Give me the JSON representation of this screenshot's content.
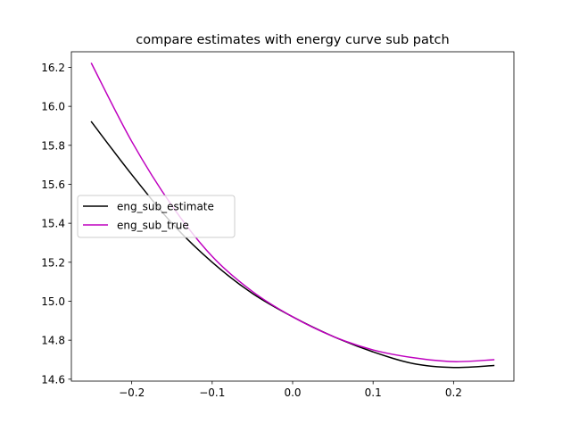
{
  "chart_data": {
    "type": "line",
    "title": "compare estimates with energy curve sub patch",
    "xlabel": "",
    "ylabel": "",
    "xlim": [
      -0.275,
      0.275
    ],
    "ylim": [
      14.59,
      16.28
    ],
    "xticks": [
      -0.2,
      -0.1,
      0.0,
      0.1,
      0.2
    ],
    "xtick_labels": [
      "−0.2",
      "−0.1",
      "0.0",
      "0.1",
      "0.2"
    ],
    "yticks": [
      14.6,
      14.8,
      15.0,
      15.2,
      15.4,
      15.6,
      15.8,
      16.0,
      16.2
    ],
    "ytick_labels": [
      "14.6",
      "14.8",
      "15.0",
      "15.2",
      "15.4",
      "15.6",
      "15.8",
      "16.0",
      "16.2"
    ],
    "grid": false,
    "legend_position": "center-left",
    "series": [
      {
        "name": "eng_sub_estimate",
        "color": "#000000",
        "x": [
          -0.25,
          -0.2,
          -0.15,
          -0.1,
          -0.05,
          0.0,
          0.05,
          0.1,
          0.15,
          0.2,
          0.25
        ],
        "y": [
          15.92,
          15.65,
          15.4,
          15.2,
          15.04,
          14.92,
          14.82,
          14.74,
          14.68,
          14.66,
          14.67
        ]
      },
      {
        "name": "eng_sub_true",
        "color": "#bf00bf",
        "x": [
          -0.25,
          -0.2,
          -0.15,
          -0.1,
          -0.05,
          0.0,
          0.05,
          0.1,
          0.15,
          0.2,
          0.25
        ],
        "y": [
          16.22,
          15.82,
          15.49,
          15.23,
          15.05,
          14.92,
          14.82,
          14.75,
          14.71,
          14.69,
          14.7
        ]
      }
    ]
  }
}
